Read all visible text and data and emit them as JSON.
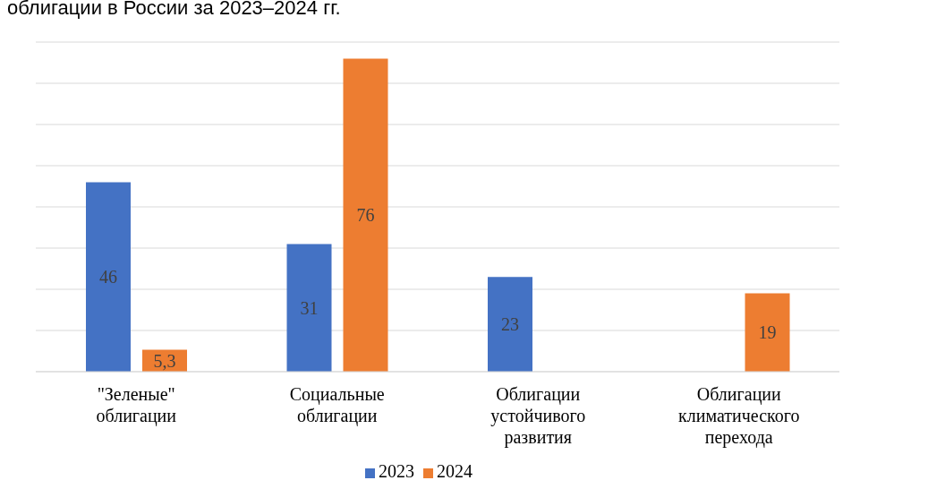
{
  "chart_data": {
    "type": "bar",
    "title": "облигации в России за 2023–2024 гг.",
    "categories": [
      "\"Зеленые\" облигации",
      "Социальные облигации",
      "Облигации устойчивого развития",
      "Облигации климатического перехода"
    ],
    "series": [
      {
        "name": "2023",
        "color": "#4472c4",
        "values": [
          46,
          31,
          23,
          null
        ],
        "value_labels": [
          "46",
          "31",
          "23",
          null
        ]
      },
      {
        "name": "2024",
        "color": "#ed7d31",
        "values": [
          5.3,
          76,
          null,
          19
        ],
        "value_labels": [
          "5,3",
          "76",
          null,
          "19"
        ]
      }
    ],
    "ylim": [
      0,
      80
    ],
    "yticks": [
      {
        "value": 0,
        "label": null
      },
      {
        "value": 10,
        "label": null
      },
      {
        "value": 20,
        "label": null
      },
      {
        "value": 30,
        "label": null
      },
      {
        "value": 40,
        "label": null
      },
      {
        "value": 50,
        "label": null
      },
      {
        "value": 60,
        "label": null
      },
      {
        "value": 70,
        "label": null
      },
      {
        "value": 80,
        "label": null
      }
    ],
    "grid": "y",
    "legend": "bottom"
  }
}
